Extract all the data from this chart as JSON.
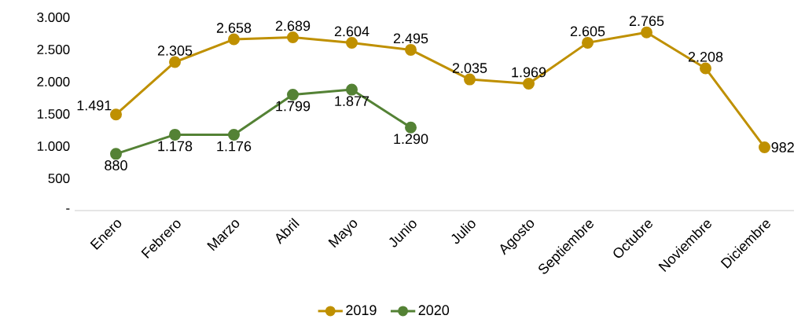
{
  "chart_data": {
    "type": "line",
    "categories": [
      "Enero",
      "Febrero",
      "Marzo",
      "Abril",
      "Mayo",
      "Junio",
      "Julio",
      "Agosto",
      "Septiembre",
      "Octubre",
      "Noviembre",
      "Diciembre"
    ],
    "series": [
      {
        "name": "2019",
        "color": "#bf9000",
        "values": [
          1491,
          2305,
          2658,
          2689,
          2604,
          2495,
          2035,
          1969,
          2605,
          2765,
          2208,
          982
        ],
        "value_labels": [
          "1.491",
          "2.305",
          "2.658",
          "2.689",
          "2.604",
          "2.495",
          "2.035",
          "1.969",
          "2.605",
          "2.765",
          "2.208",
          "982"
        ]
      },
      {
        "name": "2020",
        "color": "#548235",
        "values": [
          880,
          1178,
          1176,
          1799,
          1877,
          1290,
          null,
          null,
          null,
          null,
          null,
          null
        ],
        "value_labels": [
          "880",
          "1.178",
          "1.176",
          "1.799",
          "1.877",
          "1.290",
          null,
          null,
          null,
          null,
          null,
          null
        ]
      }
    ],
    "ylim": [
      0,
      3000
    ],
    "yticks": [
      {
        "value": 0,
        "label": "-"
      },
      500,
      {
        "value": 1000,
        "label": "1.000"
      },
      {
        "value": 1500,
        "label": "1.500"
      },
      {
        "value": 2000,
        "label": "2.000"
      },
      {
        "value": 2500,
        "label": "2.500"
      },
      {
        "value": 3000,
        "label": "3.000"
      }
    ],
    "legend": "bottom",
    "marker": "circle"
  }
}
